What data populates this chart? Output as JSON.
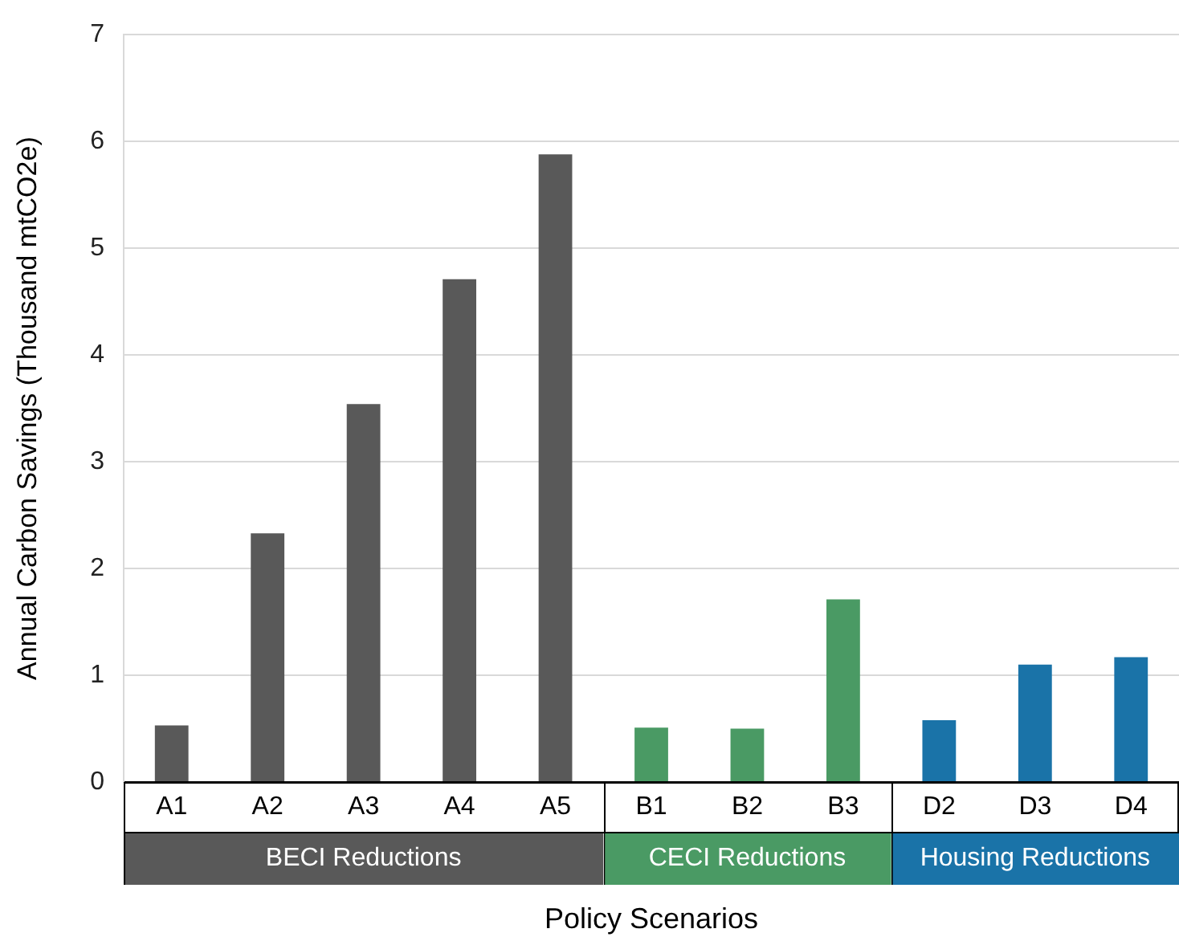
{
  "chart_data": {
    "type": "bar",
    "xlabel": "Policy Scenarios",
    "ylabel": "Annual Carbon Savings (Thousand mtCO2e)",
    "categories": [
      "A1",
      "A2",
      "A3",
      "A4",
      "A5",
      "B1",
      "B2",
      "B3",
      "D2",
      "D3",
      "D4"
    ],
    "series": [
      {
        "name": "BECI Reductions",
        "color": "#595959",
        "values": [
          0.53,
          2.33,
          3.54,
          4.71,
          5.88,
          null,
          null,
          null,
          null,
          null,
          null
        ]
      },
      {
        "name": "CECI Reductions",
        "color": "#4a9a64",
        "values": [
          null,
          null,
          null,
          null,
          null,
          0.51,
          0.5,
          1.71,
          null,
          null,
          null
        ]
      },
      {
        "name": "Housing Reductions",
        "color": "#1a73a8",
        "values": [
          null,
          null,
          null,
          null,
          null,
          null,
          null,
          null,
          0.58,
          1.1,
          1.17
        ]
      }
    ],
    "ylim": [
      0,
      7
    ],
    "yticks": [
      0,
      1,
      2,
      3,
      4,
      5,
      6,
      7
    ],
    "grid": "y",
    "legend": "bottom"
  }
}
